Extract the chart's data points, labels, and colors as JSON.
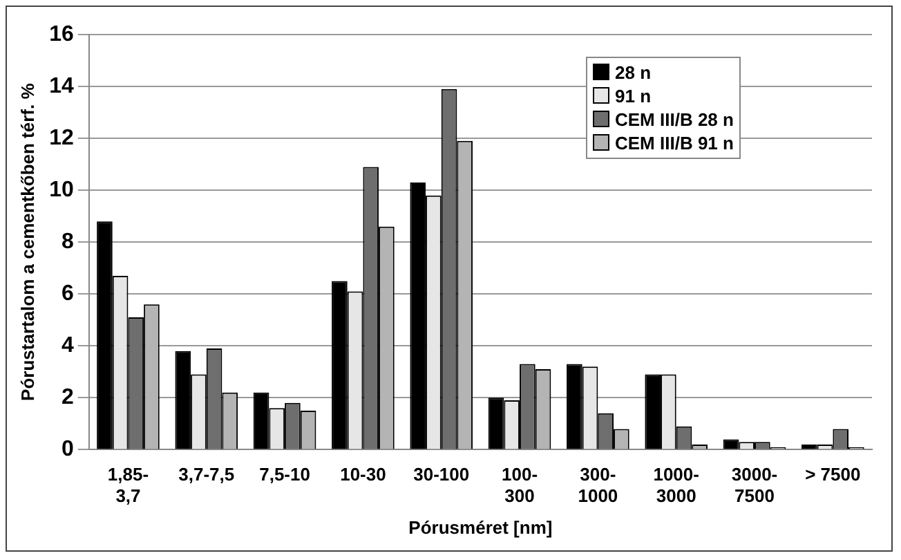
{
  "chart_data": {
    "type": "bar",
    "ylabel": "Pórustartalom a cementkőben térf. %",
    "xlabel": "Pórusméret [nm]",
    "categories": [
      "1,85-3,7",
      "3,7-7,5",
      "7,5-10",
      "10-30",
      "30-100",
      "100-300",
      "300-1000",
      "1000-3000",
      "3000-7500",
      "> 7500"
    ],
    "series": [
      {
        "name": "28 n",
        "color": "#000000",
        "values": [
          8.8,
          3.8,
          2.2,
          6.5,
          10.3,
          2.0,
          3.3,
          2.9,
          0.4,
          0.2
        ]
      },
      {
        "name": "91 n",
        "color": "#e6e6e6",
        "values": [
          6.7,
          2.9,
          1.6,
          6.1,
          9.8,
          1.9,
          3.2,
          2.9,
          0.3,
          0.2
        ]
      },
      {
        "name": "CEM III/B 28 n",
        "color": "#6e6e6e",
        "values": [
          5.1,
          3.9,
          1.8,
          10.9,
          13.9,
          3.3,
          1.4,
          0.9,
          0.3,
          0.8
        ]
      },
      {
        "name": "CEM III/B 91 n",
        "color": "#b4b4b4",
        "values": [
          5.6,
          2.2,
          1.5,
          8.6,
          11.9,
          3.1,
          0.8,
          0.2,
          0.1,
          0.1
        ]
      }
    ],
    "ylim": [
      0,
      16
    ],
    "yticks": [
      0,
      2,
      4,
      6,
      8,
      10,
      12,
      14,
      16
    ],
    "grid": "y",
    "legend": "top right"
  }
}
